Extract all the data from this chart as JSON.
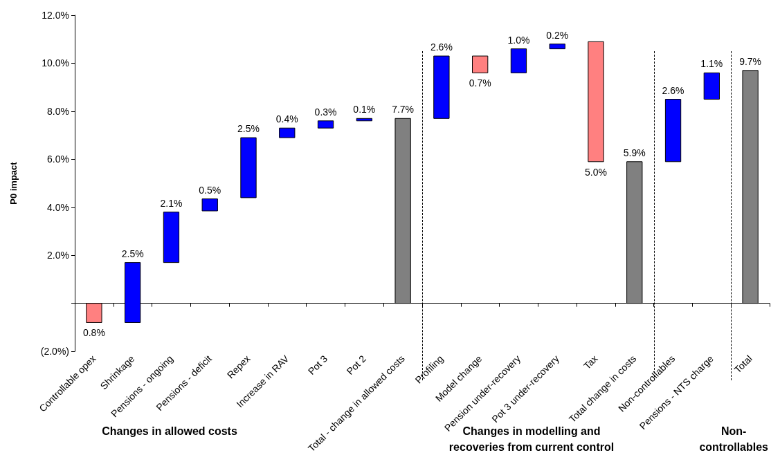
{
  "chart_data": {
    "type": "bar",
    "ylabel": "P0 impact",
    "categories": [
      "Controllable opex",
      "Shrinkage",
      "Pensions - ongoing",
      "Pensions - deficit",
      "Repex",
      "Increase in RAV",
      "Pot 3",
      "Pot 2",
      "Total - change in allowed costs",
      "Profiling",
      "Model change",
      "Pension under-recovery",
      "Pot 3 under-recovery",
      "Tax",
      "Total change in costs",
      "Non-controllables",
      "Pensions - NTS charge",
      "Total"
    ],
    "base": [
      0,
      -0.8,
      1.7,
      3.85,
      4.4,
      6.9,
      7.3,
      7.6,
      0,
      7.7,
      10.3,
      9.6,
      10.6,
      10.9,
      0,
      5.9,
      8.5,
      0
    ],
    "values": [
      -0.8,
      2.5,
      2.1,
      0.5,
      2.5,
      0.4,
      0.3,
      0.1,
      7.7,
      2.6,
      -0.7,
      1.0,
      0.2,
      -5.0,
      5.9,
      2.6,
      1.1,
      9.7
    ],
    "value_labels": [
      "0.8%",
      "2.5%",
      "2.1%",
      "0.5%",
      "2.5%",
      "0.4%",
      "0.3%",
      "0.1%",
      "7.7%",
      "2.6%",
      "0.7%",
      "1.0%",
      "0.2%",
      "5.0%",
      "5.9%",
      "2.6%",
      "1.1%",
      "9.7%"
    ],
    "colors": [
      "#ff8080",
      "#0000ff",
      "#0000ff",
      "#0000ff",
      "#0000ff",
      "#0000ff",
      "#0000ff",
      "#0000ff",
      "#808080",
      "#0000ff",
      "#ff8080",
      "#0000ff",
      "#0000ff",
      "#ff8080",
      "#808080",
      "#0000ff",
      "#0000ff",
      "#808080"
    ],
    "ylim": [
      -2,
      12
    ],
    "yticks": [
      {
        "value": -2,
        "label": "(2.0%)"
      },
      {
        "value": 0,
        "label": null
      },
      {
        "value": 2,
        "label": "2.0%"
      },
      {
        "value": 4,
        "label": "4.0%"
      },
      {
        "value": 6,
        "label": "6.0%"
      },
      {
        "value": 8,
        "label": "8.0%"
      },
      {
        "value": 10,
        "label": "10.0%"
      },
      {
        "value": 12,
        "label": "12.0%"
      }
    ],
    "grid": false,
    "annotations": [
      "Changes in allowed costs",
      "Changes in modelling and\nrecoveries from current control",
      "Non-\ncontrollables"
    ]
  }
}
